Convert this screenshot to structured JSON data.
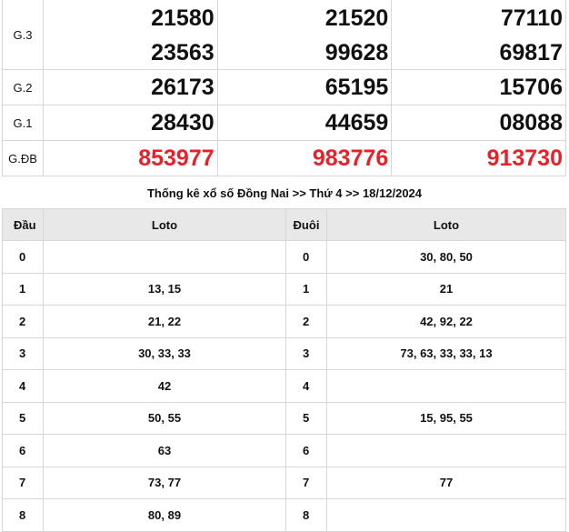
{
  "results": {
    "rows": [
      {
        "label": "G.3",
        "values": [
          [
            "21580",
            "23563"
          ],
          [
            "21520",
            "99628"
          ],
          [
            "77110",
            "69817"
          ]
        ],
        "highlight": false
      },
      {
        "label": "G.2",
        "values": [
          [
            "26173"
          ],
          [
            "65195"
          ],
          [
            "15706"
          ]
        ],
        "highlight": false
      },
      {
        "label": "G.1",
        "values": [
          [
            "28430"
          ],
          [
            "44659"
          ],
          [
            "08088"
          ]
        ],
        "highlight": false
      },
      {
        "label": "G.ĐB",
        "values": [
          [
            "853977"
          ],
          [
            "983776"
          ],
          [
            "913730"
          ]
        ],
        "highlight": true
      }
    ],
    "highlight_color": "#e8202a"
  },
  "stats": {
    "title": "Thống kê xổ số Đồng Nai >> Thứ 4 >> 18/12/2024",
    "headers": {
      "dau": "Đầu",
      "loto1": "Loto",
      "duoi": "Đuôi",
      "loto2": "Loto"
    },
    "rows": [
      {
        "dau": "0",
        "loto1": "",
        "duoi": "0",
        "loto2": "30, 80, 50"
      },
      {
        "dau": "1",
        "loto1": "13, 15",
        "duoi": "1",
        "loto2": "21"
      },
      {
        "dau": "2",
        "loto1": "21, 22",
        "duoi": "2",
        "loto2": "42, 92, 22"
      },
      {
        "dau": "3",
        "loto1": "30, 33, 33",
        "duoi": "3",
        "loto2": "73, 63, 33, 33, 13"
      },
      {
        "dau": "4",
        "loto1": "42",
        "duoi": "4",
        "loto2": ""
      },
      {
        "dau": "5",
        "loto1": "50, 55",
        "duoi": "5",
        "loto2": "15, 95, 55"
      },
      {
        "dau": "6",
        "loto1": "63",
        "duoi": "6",
        "loto2": ""
      },
      {
        "dau": "7",
        "loto1": "73, 77",
        "duoi": "7",
        "loto2": "77"
      },
      {
        "dau": "8",
        "loto1": "80, 89",
        "duoi": "8",
        "loto2": ""
      }
    ]
  }
}
